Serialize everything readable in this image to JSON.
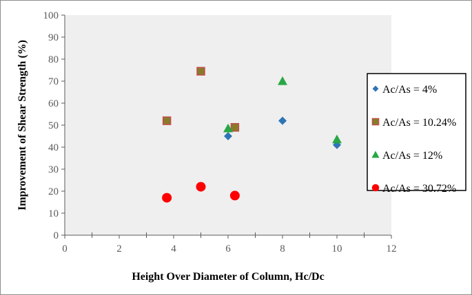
{
  "chart_data": {
    "type": "scatter",
    "title": "",
    "xlabel": "Height Over Diameter of Column, Hc/Dc",
    "ylabel": "Improvement of Shear Strength (%)",
    "xlim": [
      0,
      12
    ],
    "ylim": [
      0,
      100
    ],
    "x_ticks": [
      "0",
      "2",
      "4",
      "6",
      "8",
      "10",
      "12"
    ],
    "y_ticks": [
      "0",
      "10",
      "20",
      "30",
      "40",
      "50",
      "60",
      "70",
      "80",
      "90",
      "100"
    ],
    "grid": false,
    "legend_position": "right",
    "series": [
      {
        "name": "Ac/As = 4%",
        "marker": "diamond",
        "color": "#2e75b6",
        "points": [
          [
            6,
            45
          ],
          [
            8,
            52
          ],
          [
            10,
            41
          ]
        ]
      },
      {
        "name": "Ac/As = 10.24%",
        "marker": "square",
        "color": "#8a7a2a",
        "stroke": "#c0504d",
        "points": [
          [
            3.75,
            52
          ],
          [
            5,
            74.5
          ],
          [
            6.25,
            49
          ]
        ]
      },
      {
        "name": "Ac/As = 12%",
        "marker": "triangle",
        "color": "#28a745",
        "points": [
          [
            6,
            48.5
          ],
          [
            8,
            70
          ],
          [
            10,
            43.5
          ]
        ]
      },
      {
        "name": "Ac/As = 30.72%",
        "marker": "circle",
        "color": "#ff0000",
        "points": [
          [
            3.75,
            17
          ],
          [
            5,
            22
          ],
          [
            6.25,
            18
          ]
        ]
      }
    ]
  }
}
